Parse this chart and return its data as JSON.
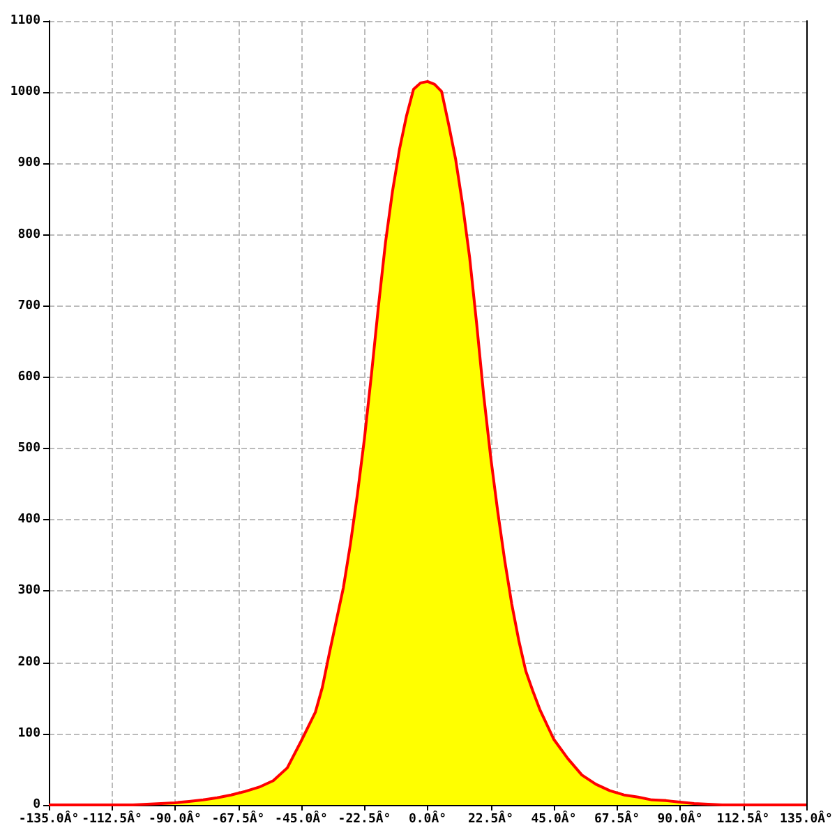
{
  "chart_data": {
    "type": "area",
    "x": [
      -100,
      -95,
      -90,
      -85,
      -80,
      -75,
      -70,
      -65,
      -60,
      -55,
      -50,
      -45,
      -40,
      -37.5,
      -35,
      -32.5,
      -30,
      -27.5,
      -25,
      -22.5,
      -20,
      -17.5,
      -15,
      -12.5,
      -10,
      -7.5,
      -5,
      -2.5,
      0,
      2.5,
      5,
      7.5,
      10,
      12.5,
      15,
      17.5,
      20,
      22.5,
      25,
      27.5,
      30,
      32.5,
      35,
      37.5,
      40,
      45,
      50,
      55,
      60,
      65,
      70,
      75,
      80,
      85,
      90,
      95,
      100
    ],
    "series": [
      {
        "color": "#ffff00",
        "values": [
          0,
          2,
          4,
          5,
          7,
          10,
          14,
          19,
          25,
          34,
          52,
          90,
          130,
          165,
          213,
          259,
          307,
          368,
          436,
          514,
          604,
          700,
          789,
          861,
          920,
          967,
          1004,
          1013,
          1015,
          1011,
          1001,
          955,
          906,
          842,
          768,
          675,
          575,
          488,
          412,
          343,
          282,
          231,
          188,
          160,
          135,
          92,
          65,
          42,
          29,
          20,
          14,
          11,
          7,
          8,
          4,
          2,
          0
        ]
      },
      {
        "type": "line",
        "color": "#ff0000",
        "x": [
          -135,
          -105,
          -100,
          -95,
          -90,
          -85,
          -80,
          -75,
          -70,
          -65,
          -60,
          -55,
          -50,
          -45,
          -40,
          -37.5,
          -35,
          -32.5,
          -30,
          -27.5,
          -25,
          -22.5,
          -20,
          -17.5,
          -15,
          -12.5,
          -10,
          -7.5,
          -5,
          -2.5,
          0,
          2.5,
          5,
          7.5,
          10,
          12.5,
          15,
          17.5,
          20,
          22.5,
          25,
          27.5,
          30,
          32.5,
          35,
          37.5,
          40,
          45,
          50,
          55,
          60,
          65,
          70,
          75,
          80,
          85,
          90,
          95,
          100,
          105,
          135
        ],
        "values": [
          0,
          0,
          1,
          2,
          3,
          5,
          7,
          10,
          14,
          19,
          25,
          34,
          52,
          90,
          130,
          165,
          213,
          259,
          305,
          366,
          436,
          514,
          604,
          700,
          789,
          861,
          920,
          967,
          1004,
          1013,
          1015,
          1011,
          1001,
          955,
          906,
          842,
          768,
          675,
          575,
          488,
          412,
          343,
          282,
          231,
          188,
          160,
          134,
          92,
          65,
          42,
          29,
          20,
          14,
          11,
          7,
          6,
          4,
          2,
          1,
          0,
          0
        ]
      }
    ],
    "xlim": [
      -135,
      135
    ],
    "xticks": [
      {
        "value": -135,
        "label": "-135.0Â°"
      },
      {
        "value": -112.5,
        "label": "-112.5Â°"
      },
      {
        "value": -90,
        "label": "-90.0Â°"
      },
      {
        "value": -67.5,
        "label": "-67.5Â°"
      },
      {
        "value": -45,
        "label": "-45.0Â°"
      },
      {
        "value": -22.5,
        "label": "-22.5Â°"
      },
      {
        "value": 0,
        "label": "0.0Â°"
      },
      {
        "value": 22.5,
        "label": "22.5Â°"
      },
      {
        "value": 45,
        "label": "45.0Â°"
      },
      {
        "value": 67.5,
        "label": "67.5Â°"
      },
      {
        "value": 90,
        "label": "90.0Â°"
      },
      {
        "value": 112.5,
        "label": "112.5Â°"
      },
      {
        "value": 135,
        "label": "135.0Â°"
      }
    ],
    "ylim": [
      0,
      1100
    ],
    "yticks": [
      0,
      100,
      200,
      300,
      400,
      500,
      600,
      700,
      800,
      900,
      1000,
      1100
    ],
    "grid": true
  }
}
